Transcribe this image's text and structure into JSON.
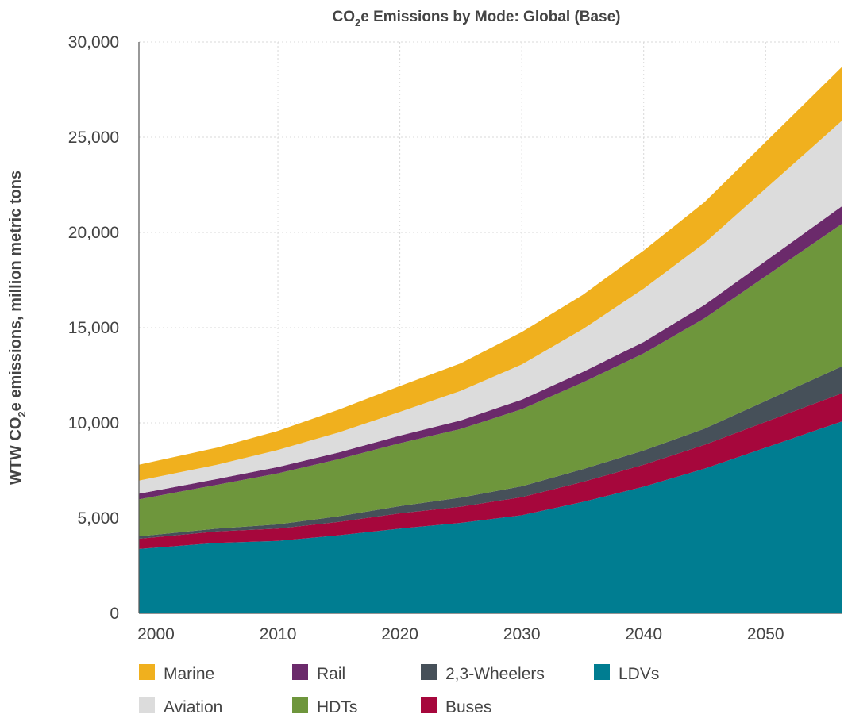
{
  "chart_data": {
    "type": "area",
    "stacked": true,
    "title": {
      "prefix": "CO",
      "sub": "2",
      "suffix": "e Emissions by Mode: Global (Base)"
    },
    "ylabel": {
      "prefix": "WTW CO",
      "sub": "2",
      "suffix": "e emissions, million metric tons"
    },
    "xlabel": "",
    "x": [
      2000,
      2005,
      2010,
      2015,
      2020,
      2025,
      2030,
      2035,
      2040,
      2045,
      2050
    ],
    "xticks": [
      2000,
      2010,
      2020,
      2030,
      2040,
      2050
    ],
    "xticks_labels": [
      "2000",
      "2010",
      "2020",
      "2030",
      "2040",
      "2050"
    ],
    "xlim": [
      1998.6,
      2056.3
    ],
    "ylim": [
      0,
      30000
    ],
    "yticks": [
      0,
      5000,
      10000,
      15000,
      20000,
      25000,
      30000
    ],
    "yticks_labels": [
      "0",
      "5,000",
      "10,000",
      "15,000",
      "20,000",
      "25,000",
      "30,000"
    ],
    "grid": true,
    "legend_position": "bottom",
    "series": [
      {
        "name": "LDVs",
        "color": "#007d91",
        "values": [
          3450,
          3700,
          3800,
          4100,
          4450,
          4750,
          5150,
          5850,
          6650,
          7600,
          8700
        ]
      },
      {
        "name": "Buses",
        "color": "#a6073c",
        "values": [
          550,
          600,
          650,
          700,
          800,
          850,
          950,
          1050,
          1150,
          1250,
          1350
        ]
      },
      {
        "name": "2,3-Wheelers",
        "color": "#465059",
        "values": [
          130,
          150,
          220,
          300,
          380,
          480,
          570,
          670,
          750,
          850,
          1100
        ]
      },
      {
        "name": "HDTs",
        "color": "#6e963c",
        "values": [
          2020,
          2300,
          2680,
          3000,
          3300,
          3600,
          4050,
          4550,
          5100,
          5800,
          6550
        ]
      },
      {
        "name": "Rail",
        "color": "#6b2a6b",
        "values": [
          300,
          300,
          330,
          350,
          400,
          450,
          500,
          550,
          600,
          700,
          800
        ]
      },
      {
        "name": "Aviation",
        "color": "#dcdcdc",
        "values": [
          700,
          750,
          900,
          1050,
          1250,
          1550,
          1850,
          2250,
          2800,
          3250,
          3800
        ]
      },
      {
        "name": "Marine",
        "color": "#f0b01e",
        "values": [
          850,
          900,
          1000,
          1200,
          1350,
          1450,
          1700,
          1800,
          2000,
          2150,
          2450
        ]
      }
    ],
    "legend_order": [
      "Marine",
      "Rail",
      "2,3-Wheelers",
      "LDVs",
      "Aviation",
      "HDTs",
      "Buses"
    ]
  }
}
